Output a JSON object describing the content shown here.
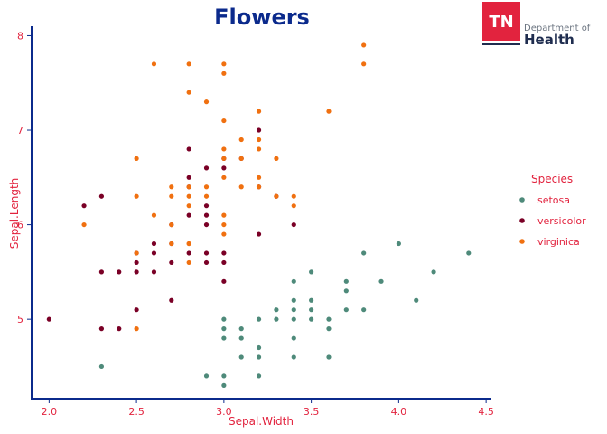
{
  "logo": {
    "badge": "TN",
    "line1": "Department of",
    "line2": "Health"
  },
  "chart_data": {
    "type": "scatter",
    "title": "Flowers",
    "xlabel": "Sepal.Width",
    "ylabel": "Sepal.Length",
    "xlim": [
      1.9,
      4.52
    ],
    "ylim": [
      4.16,
      8.1
    ],
    "xticks": [
      2.0,
      2.5,
      3.0,
      3.5,
      4.0,
      4.5
    ],
    "xtick_labels": [
      "2.0",
      "2.5",
      "3.0",
      "3.5",
      "4.0",
      "4.5"
    ],
    "yticks": [
      5,
      6,
      7,
      8
    ],
    "ytick_labels": [
      "5",
      "6",
      "7",
      "8"
    ],
    "grid": false,
    "legend": {
      "title": "Species",
      "position": "right"
    },
    "series": [
      {
        "name": "setosa",
        "color": "#4e8a7a",
        "x": [
          2.3,
          2.9,
          3.0,
          3.0,
          3.0,
          3.0,
          3.0,
          3.1,
          3.1,
          3.1,
          3.2,
          3.2,
          3.2,
          3.2,
          3.3,
          3.3,
          3.4,
          3.4,
          3.4,
          3.4,
          3.4,
          3.4,
          3.5,
          3.5,
          3.5,
          3.5,
          3.6,
          3.6,
          3.6,
          3.7,
          3.7,
          3.7,
          3.8,
          3.8,
          3.9,
          4.0,
          4.1,
          4.2,
          4.4
        ],
        "y": [
          4.5,
          4.4,
          4.3,
          4.4,
          4.8,
          4.9,
          5.0,
          4.6,
          4.8,
          4.9,
          4.4,
          4.6,
          4.7,
          5.0,
          5.0,
          5.1,
          4.6,
          4.8,
          5.0,
          5.1,
          5.2,
          5.4,
          5.0,
          5.1,
          5.2,
          5.5,
          4.6,
          4.9,
          5.0,
          5.1,
          5.3,
          5.4,
          5.1,
          5.7,
          5.4,
          5.8,
          5.2,
          5.5,
          5.7
        ]
      },
      {
        "name": "versicolor",
        "color": "#7a0026",
        "x": [
          2.0,
          2.2,
          2.3,
          2.3,
          2.3,
          2.4,
          2.4,
          2.5,
          2.5,
          2.5,
          2.5,
          2.6,
          2.6,
          2.6,
          2.7,
          2.7,
          2.7,
          2.7,
          2.8,
          2.8,
          2.8,
          2.8,
          2.8,
          2.9,
          2.9,
          2.9,
          2.9,
          2.9,
          2.9,
          3.0,
          3.0,
          3.0,
          3.0,
          3.0,
          3.1,
          3.2,
          3.2,
          3.2,
          3.3,
          3.4
        ],
        "y": [
          5.0,
          6.2,
          4.9,
          5.5,
          6.3,
          4.9,
          5.5,
          5.1,
          5.5,
          5.6,
          5.7,
          5.5,
          5.7,
          5.8,
          5.2,
          5.6,
          5.8,
          6.0,
          5.7,
          6.1,
          6.5,
          6.8,
          6.4,
          5.6,
          5.7,
          6.0,
          6.1,
          6.2,
          6.6,
          5.4,
          5.6,
          5.7,
          6.6,
          6.7,
          6.7,
          5.9,
          6.4,
          7.0,
          6.3,
          6.0
        ]
      },
      {
        "name": "virginica",
        "color": "#f07010",
        "x": [
          2.2,
          2.5,
          2.5,
          2.5,
          2.5,
          2.6,
          2.6,
          2.7,
          2.7,
          2.7,
          2.7,
          2.8,
          2.8,
          2.8,
          2.8,
          2.8,
          2.8,
          2.8,
          2.8,
          2.9,
          2.9,
          2.9,
          3.0,
          3.0,
          3.0,
          3.0,
          3.0,
          3.0,
          3.0,
          3.0,
          3.0,
          3.1,
          3.1,
          3.1,
          3.2,
          3.2,
          3.2,
          3.2,
          3.2,
          3.3,
          3.3,
          3.4,
          3.4,
          3.6,
          3.8,
          3.8
        ],
        "y": [
          6.0,
          4.9,
          5.7,
          6.3,
          6.7,
          6.1,
          7.7,
          5.8,
          6.3,
          6.4,
          6.0,
          5.6,
          5.8,
          6.2,
          6.3,
          6.4,
          7.4,
          7.7,
          5.8,
          6.3,
          7.3,
          6.4,
          5.9,
          6.0,
          6.1,
          6.5,
          6.7,
          6.8,
          7.1,
          7.6,
          7.7,
          6.4,
          6.7,
          6.9,
          6.4,
          6.5,
          6.8,
          6.9,
          7.2,
          6.3,
          6.7,
          6.2,
          6.3,
          7.2,
          7.7,
          7.9
        ]
      }
    ]
  }
}
